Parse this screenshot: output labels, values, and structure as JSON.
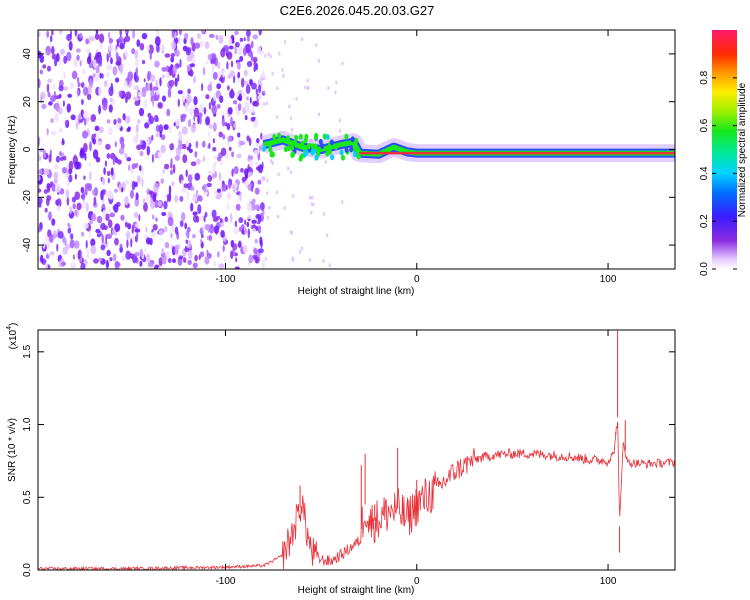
{
  "title": "C2E6.2026.045.20.03.G27",
  "chart_data": [
    {
      "type": "heatmap",
      "xlabel": "Height of straight line (km)",
      "ylabel": "Frequency (Hz)",
      "xlim": [
        -198,
        135
      ],
      "ylim": [
        -50,
        50
      ],
      "xticks": [
        -100,
        0,
        100
      ],
      "xtick_labels": [
        "-100",
        "0",
        "100"
      ],
      "yticks": [
        -40,
        -20,
        0,
        20,
        40
      ],
      "ytick_labels": [
        "-40",
        "-20",
        "0",
        "20",
        "40"
      ],
      "noise_region_end_km": -80,
      "signal_line_freq_hz": -1.5,
      "signal_track": [
        {
          "x": -80,
          "f": 2
        },
        {
          "x": -70,
          "f": 4
        },
        {
          "x": -60,
          "f": 1
        },
        {
          "x": -50,
          "f": 0
        },
        {
          "x": -40,
          "f": 2
        },
        {
          "x": -33,
          "f": 3
        },
        {
          "x": -30,
          "f": -1.5
        },
        {
          "x": -20,
          "f": -2
        },
        {
          "x": -12,
          "f": 1
        },
        {
          "x": -5,
          "f": -1
        },
        {
          "x": 0,
          "f": -1.5
        },
        {
          "x": 135,
          "f": -1.5
        }
      ],
      "colorbar": {
        "label": "Normalized spectral amplitude",
        "range": [
          0,
          1
        ],
        "ticks": [
          0.0,
          0.2,
          0.4,
          0.6,
          0.8
        ],
        "tick_labels": [
          "0.0",
          "0.2",
          "0.4",
          "0.6",
          "0.8"
        ]
      }
    },
    {
      "type": "line",
      "xlabel": "Height of straight line (km)",
      "ylabel": "SNR (10 * v/v)",
      "y_multiplier_label": "(x10",
      "y_multiplier_exp": "4",
      "xlim": [
        -198,
        135
      ],
      "ylim": [
        0,
        1.65
      ],
      "xticks": [
        -100,
        0,
        100
      ],
      "xtick_labels": [
        "-100",
        "0",
        "100"
      ],
      "yticks": [
        0.0,
        0.5,
        1.0,
        1.5
      ],
      "ytick_labels": [
        "0.0",
        "0.5",
        "1.0",
        "1.5"
      ],
      "color": "#e8323a",
      "series": [
        {
          "name": "SNR",
          "x": [
            -198,
            -150,
            -100,
            -80,
            -70,
            -65,
            -62,
            -60,
            -58,
            -55,
            -50,
            -45,
            -40,
            -35,
            -30,
            -27,
            -25,
            -20,
            -15,
            -10,
            -5,
            0,
            10,
            20,
            30,
            40,
            50,
            60,
            70,
            80,
            90,
            100,
            103,
            105,
            106,
            108,
            110,
            120,
            135
          ],
          "y": [
            0.01,
            0.01,
            0.02,
            0.03,
            0.1,
            0.25,
            0.38,
            0.48,
            0.3,
            0.12,
            0.07,
            0.06,
            0.1,
            0.15,
            0.2,
            0.45,
            0.32,
            0.35,
            0.4,
            0.42,
            0.35,
            0.45,
            0.55,
            0.68,
            0.76,
            0.79,
            0.8,
            0.8,
            0.79,
            0.78,
            0.76,
            0.75,
            0.8,
            1.05,
            0.3,
            0.9,
            0.74,
            0.73,
            0.74
          ]
        }
      ],
      "spikes": [
        {
          "x": -61,
          "y": 0.58
        },
        {
          "x": -29,
          "y": 0.72
        },
        {
          "x": -27,
          "y": 0.8
        },
        {
          "x": -22,
          "y": 0.45
        },
        {
          "x": -10,
          "y": 0.84
        },
        {
          "x": 0,
          "y": 0.62
        },
        {
          "x": 104,
          "y": 0.95
        },
        {
          "x": 105,
          "y": 1.65
        },
        {
          "x": 106,
          "y": 0.12
        },
        {
          "x": 109,
          "y": 1.03
        }
      ]
    }
  ],
  "colors": {
    "noise": "#7b2cff",
    "line": "#e8323a",
    "track_core": "#e8323a",
    "track_mid": "#19e819",
    "track_outer": "#2b4bff"
  }
}
